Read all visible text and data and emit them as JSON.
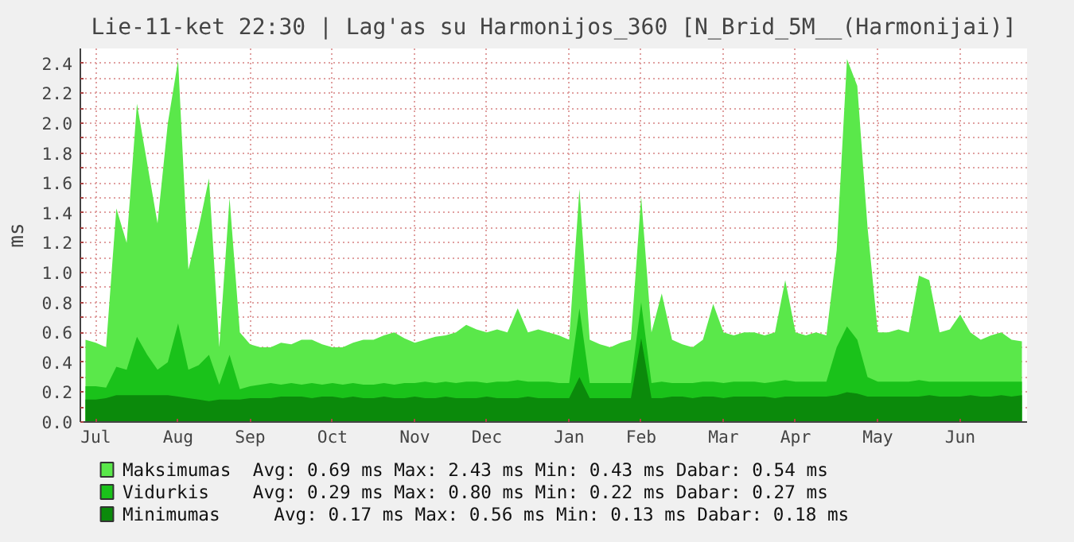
{
  "chart_data": {
    "type": "area",
    "title": "Lie-11-ket 22:30 | Lag'as su Harmonijos_360 [N_Brid_5M__(Harmonijai)]",
    "ylabel": "ms",
    "categories": [
      null,
      "Jul",
      null,
      null,
      null,
      null,
      null,
      null,
      null,
      "Aug",
      null,
      null,
      null,
      null,
      null,
      null,
      "Sep",
      null,
      null,
      null,
      null,
      null,
      null,
      null,
      "Oct",
      null,
      null,
      null,
      null,
      null,
      null,
      null,
      "Nov",
      null,
      null,
      null,
      null,
      null,
      null,
      "Dec",
      null,
      null,
      null,
      null,
      null,
      null,
      null,
      "Jan",
      null,
      null,
      null,
      null,
      null,
      null,
      "Feb",
      null,
      null,
      null,
      null,
      null,
      null,
      null,
      "Mar",
      null,
      null,
      null,
      null,
      null,
      null,
      "Apr",
      null,
      null,
      null,
      null,
      null,
      null,
      null,
      "May",
      null,
      null,
      null,
      null,
      null,
      null,
      null,
      "Jun",
      null,
      null,
      null,
      null,
      null,
      null
    ],
    "ylim": [
      0,
      2.5
    ],
    "yticks": [
      {
        "value": 0,
        "label": "0.0"
      },
      {
        "value": 0.1,
        "label": null
      },
      {
        "value": 0.2,
        "label": "0.2"
      },
      {
        "value": 0.3,
        "label": null
      },
      {
        "value": 0.4,
        "label": "0.4"
      },
      {
        "value": 0.5,
        "label": null
      },
      {
        "value": 0.6,
        "label": "0.6"
      },
      {
        "value": 0.7,
        "label": null
      },
      {
        "value": 0.8,
        "label": "0.8"
      },
      {
        "value": 0.9,
        "label": null
      },
      {
        "value": 1.0,
        "label": "1.0"
      },
      {
        "value": 1.1,
        "label": null
      },
      {
        "value": 1.2,
        "label": "1.2"
      },
      {
        "value": 1.3,
        "label": null
      },
      {
        "value": 1.4,
        "label": "1.4"
      },
      {
        "value": 1.5,
        "label": null
      },
      {
        "value": 1.6,
        "label": "1.6"
      },
      {
        "value": 1.7,
        "label": null
      },
      {
        "value": 1.8,
        "label": "1.8"
      },
      {
        "value": 1.9,
        "label": null
      },
      {
        "value": 2.0,
        "label": "2.0"
      },
      {
        "value": 2.1,
        "label": null
      },
      {
        "value": 2.2,
        "label": "2.2"
      },
      {
        "value": 2.3,
        "label": null
      },
      {
        "value": 2.4,
        "label": "2.4"
      }
    ],
    "grid": true,
    "legend": "bottom",
    "series": [
      {
        "name": "Maksimumas",
        "color": "#5ae84a",
        "values": [
          0.55,
          0.53,
          0.5,
          1.43,
          1.2,
          2.13,
          1.73,
          1.33,
          2.0,
          2.42,
          1.02,
          1.3,
          1.63,
          0.5,
          1.5,
          0.6,
          0.52,
          0.5,
          0.5,
          0.53,
          0.52,
          0.55,
          0.55,
          0.52,
          0.5,
          0.5,
          0.53,
          0.55,
          0.55,
          0.58,
          0.6,
          0.56,
          0.53,
          0.55,
          0.57,
          0.58,
          0.6,
          0.65,
          0.62,
          0.6,
          0.62,
          0.6,
          0.76,
          0.6,
          0.62,
          0.6,
          0.58,
          0.55,
          1.56,
          0.55,
          0.52,
          0.5,
          0.53,
          0.55,
          1.51,
          0.6,
          0.86,
          0.55,
          0.52,
          0.5,
          0.55,
          0.79,
          0.6,
          0.58,
          0.6,
          0.6,
          0.58,
          0.6,
          0.95,
          0.6,
          0.58,
          0.6,
          0.58,
          1.15,
          2.43,
          2.25,
          1.3,
          0.6,
          0.6,
          0.62,
          0.6,
          0.98,
          0.95,
          0.6,
          0.62,
          0.72,
          0.6,
          0.55,
          0.58,
          0.6,
          0.55,
          0.54
        ]
      },
      {
        "name": "Vidurkis",
        "color": "#1ac21a",
        "values": [
          0.24,
          0.24,
          0.23,
          0.37,
          0.35,
          0.57,
          0.45,
          0.35,
          0.4,
          0.66,
          0.35,
          0.38,
          0.45,
          0.25,
          0.45,
          0.22,
          0.24,
          0.25,
          0.26,
          0.25,
          0.26,
          0.25,
          0.26,
          0.25,
          0.26,
          0.25,
          0.26,
          0.25,
          0.25,
          0.26,
          0.25,
          0.26,
          0.26,
          0.27,
          0.26,
          0.27,
          0.26,
          0.27,
          0.27,
          0.26,
          0.27,
          0.27,
          0.28,
          0.27,
          0.27,
          0.27,
          0.26,
          0.26,
          0.76,
          0.26,
          0.26,
          0.26,
          0.26,
          0.26,
          0.8,
          0.26,
          0.27,
          0.26,
          0.26,
          0.26,
          0.27,
          0.27,
          0.26,
          0.27,
          0.27,
          0.27,
          0.26,
          0.27,
          0.28,
          0.27,
          0.27,
          0.27,
          0.27,
          0.5,
          0.64,
          0.55,
          0.3,
          0.27,
          0.27,
          0.27,
          0.27,
          0.28,
          0.27,
          0.27,
          0.27,
          0.27,
          0.27,
          0.27,
          0.27,
          0.27,
          0.27,
          0.27
        ]
      },
      {
        "name": "Minimumas",
        "color": "#0b8a0b",
        "values": [
          0.15,
          0.15,
          0.16,
          0.18,
          0.18,
          0.18,
          0.18,
          0.18,
          0.18,
          0.17,
          0.16,
          0.15,
          0.14,
          0.15,
          0.15,
          0.15,
          0.16,
          0.16,
          0.16,
          0.17,
          0.17,
          0.17,
          0.16,
          0.17,
          0.17,
          0.16,
          0.17,
          0.16,
          0.16,
          0.17,
          0.16,
          0.16,
          0.17,
          0.16,
          0.16,
          0.17,
          0.16,
          0.16,
          0.16,
          0.17,
          0.16,
          0.16,
          0.16,
          0.17,
          0.16,
          0.16,
          0.16,
          0.16,
          0.3,
          0.16,
          0.16,
          0.16,
          0.16,
          0.16,
          0.56,
          0.16,
          0.16,
          0.17,
          0.17,
          0.16,
          0.17,
          0.17,
          0.16,
          0.17,
          0.17,
          0.17,
          0.17,
          0.16,
          0.17,
          0.17,
          0.17,
          0.17,
          0.17,
          0.18,
          0.2,
          0.19,
          0.17,
          0.17,
          0.17,
          0.17,
          0.17,
          0.17,
          0.18,
          0.17,
          0.17,
          0.17,
          0.18,
          0.17,
          0.17,
          0.18,
          0.17,
          0.18
        ]
      }
    ],
    "annotations": [
      "Avg:   0.69 ms   Max:   2.43 ms   Min:   0.43 ms   Dabar:   0.54 ms",
      "Avg:   0.29 ms   Max:   0.80 ms   Min:   0.22 ms   Dabar:   0.27 ms",
      "Avg:   0.17 ms   Max:   0.56 ms   Min:   0.13 ms   Dabar:   0.18 ms"
    ]
  }
}
